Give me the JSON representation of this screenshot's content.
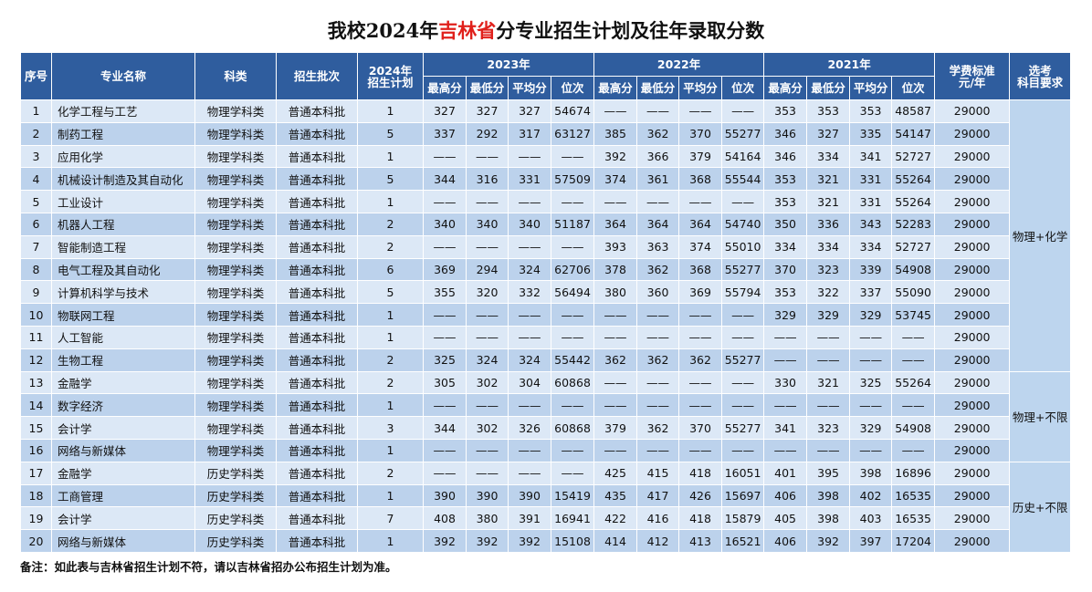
{
  "header": {
    "title": {
      "before": "我校2024年",
      "highlight": "吉林省",
      "after": "分专业招生计划及往年录取分数"
    }
  },
  "table": {
    "columns": [
      "序号",
      "专业名称",
      "科类",
      "招生批次",
      [
        "2024年",
        "招生计划"
      ]
    ],
    "years": [
      "2023年",
      "2022年",
      "2021年"
    ],
    "sub_columns": [
      "最高分",
      "最低分",
      "平均分",
      "位次"
    ],
    "tuition_header": [
      "学费标准",
      "元/年"
    ],
    "requirement_header": [
      "选考",
      "科目要求"
    ],
    "rows": [
      [
        1,
        "化学工程与工艺",
        "物理学科类",
        "普通本科批",
        1,
        327,
        327,
        327,
        54674,
        "——",
        "——",
        "——",
        "——",
        353,
        353,
        353,
        48587,
        29000
      ],
      [
        2,
        "制药工程",
        "物理学科类",
        "普通本科批",
        5,
        337,
        292,
        317,
        63127,
        385,
        362,
        370,
        55277,
        346,
        327,
        335,
        54147,
        29000
      ],
      [
        3,
        "应用化学",
        "物理学科类",
        "普通本科批",
        1,
        "——",
        "——",
        "——",
        "——",
        392,
        366,
        379,
        54164,
        346,
        334,
        341,
        52727,
        29000
      ],
      [
        4,
        "机械设计制造及其自动化",
        "物理学科类",
        "普通本科批",
        5,
        344,
        316,
        331,
        57509,
        374,
        361,
        368,
        55544,
        353,
        321,
        331,
        55264,
        29000
      ],
      [
        5,
        "工业设计",
        "物理学科类",
        "普通本科批",
        1,
        "——",
        "——",
        "——",
        "——",
        "——",
        "——",
        "——",
        "——",
        353,
        321,
        331,
        55264,
        29000
      ],
      [
        6,
        "机器人工程",
        "物理学科类",
        "普通本科批",
        2,
        340,
        340,
        340,
        51187,
        364,
        364,
        364,
        54740,
        350,
        336,
        343,
        52283,
        29000
      ],
      [
        7,
        "智能制造工程",
        "物理学科类",
        "普通本科批",
        2,
        "——",
        "——",
        "——",
        "——",
        393,
        363,
        374,
        55010,
        334,
        334,
        334,
        52727,
        29000
      ],
      [
        8,
        "电气工程及其自动化",
        "物理学科类",
        "普通本科批",
        6,
        369,
        294,
        324,
        62706,
        378,
        362,
        368,
        55277,
        370,
        323,
        339,
        54908,
        29000
      ],
      [
        9,
        "计算机科学与技术",
        "物理学科类",
        "普通本科批",
        5,
        355,
        320,
        332,
        56494,
        380,
        360,
        369,
        55794,
        353,
        322,
        337,
        55090,
        29000
      ],
      [
        10,
        "物联网工程",
        "物理学科类",
        "普通本科批",
        1,
        "——",
        "——",
        "——",
        "——",
        "——",
        "——",
        "——",
        "——",
        329,
        329,
        329,
        53745,
        29000
      ],
      [
        11,
        "人工智能",
        "物理学科类",
        "普通本科批",
        1,
        "——",
        "——",
        "——",
        "——",
        "——",
        "——",
        "——",
        "——",
        "——",
        "——",
        "——",
        "——",
        29000
      ],
      [
        12,
        "生物工程",
        "物理学科类",
        "普通本科批",
        2,
        325,
        324,
        324,
        55442,
        362,
        362,
        362,
        55277,
        "——",
        "——",
        "——",
        "——",
        29000
      ],
      [
        13,
        "金融学",
        "物理学科类",
        "普通本科批",
        2,
        305,
        302,
        304,
        60868,
        "——",
        "——",
        "——",
        "——",
        330,
        321,
        325,
        55264,
        29000
      ],
      [
        14,
        "数字经济",
        "物理学科类",
        "普通本科批",
        1,
        "——",
        "——",
        "——",
        "——",
        "——",
        "——",
        "——",
        "——",
        "——",
        "——",
        "——",
        "——",
        29000
      ],
      [
        15,
        "会计学",
        "物理学科类",
        "普通本科批",
        3,
        344,
        302,
        326,
        60868,
        379,
        362,
        370,
        55277,
        341,
        323,
        329,
        54908,
        29000
      ],
      [
        16,
        "网络与新媒体",
        "物理学科类",
        "普通本科批",
        1,
        "——",
        "——",
        "——",
        "——",
        "——",
        "——",
        "——",
        "——",
        "——",
        "——",
        "——",
        "——",
        29000
      ],
      [
        17,
        "金融学",
        "历史学科类",
        "普通本科批",
        2,
        "——",
        "——",
        "——",
        "——",
        425,
        415,
        418,
        16051,
        401,
        395,
        398,
        16896,
        29000
      ],
      [
        18,
        "工商管理",
        "历史学科类",
        "普通本科批",
        1,
        390,
        390,
        390,
        15419,
        435,
        417,
        426,
        15697,
        406,
        398,
        402,
        16535,
        29000
      ],
      [
        19,
        "会计学",
        "历史学科类",
        "普通本科批",
        7,
        408,
        380,
        391,
        16941,
        422,
        416,
        418,
        15879,
        405,
        398,
        403,
        16535,
        29000
      ],
      [
        20,
        "网络与新媒体",
        "历史学科类",
        "普通本科批",
        1,
        392,
        392,
        392,
        15108,
        414,
        412,
        413,
        16521,
        406,
        392,
        397,
        17204,
        29000
      ]
    ],
    "requirements": [
      "物理+化学",
      "物理+不限",
      "历史+不限"
    ]
  },
  "footer": {
    "note": "备注：如此表与吉林省招生计划不符，请以吉林省招办公布招生计划为准。"
  }
}
